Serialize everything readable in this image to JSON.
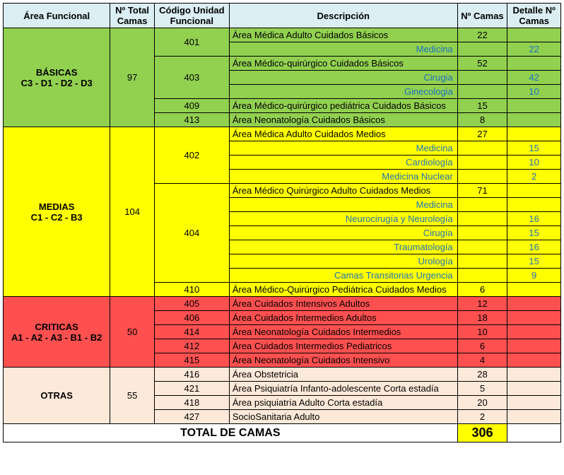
{
  "colors": {
    "header_bg": "#daeef3",
    "green": "#92d050",
    "yellow": "#ffff00",
    "red": "#ff5050",
    "peach": "#fde9d9",
    "link": "#1f72bd"
  },
  "headers": {
    "area": "Área Funcional",
    "total": "Nº Total Camas",
    "codigo": "Código Unidad Funcional",
    "desc": "Descripción",
    "camas": "Nº Camas",
    "detalle": "Detalle Nº Camas"
  },
  "groups": [
    {
      "name": "BÁSICAS",
      "sublabel": "C3 - D1 - D2 - D3",
      "total": 97,
      "bg": "#92d050",
      "units": [
        {
          "code": 401,
          "rows": [
            {
              "desc": "Área Médica Adulto Cuidados Básicos",
              "camas": 22
            },
            {
              "desc": "Medicina",
              "detalle": 22,
              "sub": true
            }
          ]
        },
        {
          "code": 403,
          "rows": [
            {
              "desc": "Área Médico-quirúrgico Cuidados Básicos",
              "camas": 52
            },
            {
              "desc": "Cirugia",
              "detalle": 42,
              "sub": true
            },
            {
              "desc": "Ginecologia",
              "detalle": 10,
              "sub": true
            }
          ]
        },
        {
          "code": 409,
          "rows": [
            {
              "desc": "Área Médico-quirúrgico pediátrica Cuidados Básicos",
              "camas": 15
            }
          ]
        },
        {
          "code": 413,
          "rows": [
            {
              "desc": "Área Neonatología Cuidados Básicos",
              "camas": 8
            }
          ]
        }
      ]
    },
    {
      "name": "MEDIAS",
      "sublabel": "C1 - C2 - B3",
      "total": 104,
      "bg": "#ffff00",
      "units": [
        {
          "code": 402,
          "rows": [
            {
              "desc": "Área Médica Adulto Cuidados Medios",
              "camas": 27
            },
            {
              "desc": "Medicina",
              "detalle": 15,
              "sub": true
            },
            {
              "desc": "Cardiología",
              "detalle": 10,
              "sub": true
            },
            {
              "desc": "Medicina Nuclear",
              "detalle": 2,
              "sub": true
            }
          ]
        },
        {
          "code": 404,
          "rows": [
            {
              "desc": "Área Médico Quirúrgico Adulto Cuidados Medios",
              "camas": 71
            },
            {
              "desc": "Medicina",
              "sub": true
            },
            {
              "desc": "Neurocirugía y Neurología",
              "detalle": 16,
              "sub": true
            },
            {
              "desc": "Cirugía",
              "detalle": 15,
              "sub": true
            },
            {
              "desc": "Traumatología",
              "detalle": 16,
              "sub": true
            },
            {
              "desc": "Urología",
              "detalle": 15,
              "sub": true
            },
            {
              "desc": "Camas Transitorias Urgencia",
              "detalle": 9,
              "sub": true
            }
          ]
        },
        {
          "code": 410,
          "rows": [
            {
              "desc": "Área Médico-Quirúrgico Pediátrica Cuidados Medios",
              "camas": 6
            }
          ]
        }
      ]
    },
    {
      "name": "CRITICAS",
      "sublabel": "A1 - A2 - A3 - B1 - B2",
      "total": 50,
      "bg": "#ff5050",
      "units": [
        {
          "code": 405,
          "rows": [
            {
              "desc": "Área Cuidados Intensivos Adultos",
              "camas": 12
            }
          ]
        },
        {
          "code": 406,
          "rows": [
            {
              "desc": "Área Cuidados Intermedios Adultos",
              "camas": 18
            }
          ]
        },
        {
          "code": 414,
          "rows": [
            {
              "desc": "Área Neonatología Cuidados Intermedios",
              "camas": 10
            }
          ]
        },
        {
          "code": 412,
          "rows": [
            {
              "desc": "Área Cuidados Intermedios Pediatricos",
              "camas": 6
            }
          ]
        },
        {
          "code": 415,
          "rows": [
            {
              "desc": "Área Neonatología Cuidados Intensivo",
              "camas": 4
            }
          ]
        }
      ]
    },
    {
      "name": "OTRAS",
      "sublabel": "",
      "total": 55,
      "bg": "#fde9d9",
      "units": [
        {
          "code": 416,
          "rows": [
            {
              "desc": "Área Obstetricia",
              "camas": 28
            }
          ]
        },
        {
          "code": 421,
          "rows": [
            {
              "desc": "Área Psiquiatría Infanto-adolescente Corta estadía",
              "camas": 5
            }
          ]
        },
        {
          "code": 418,
          "rows": [
            {
              "desc": "Área psiquiatría Adulto Corta estadía",
              "camas": 20
            }
          ]
        },
        {
          "code": 427,
          "rows": [
            {
              "desc": "SocioSanitaria Adulto",
              "camas": 2
            }
          ]
        }
      ]
    }
  ],
  "total_label": "TOTAL DE CAMAS",
  "total_value": 306
}
